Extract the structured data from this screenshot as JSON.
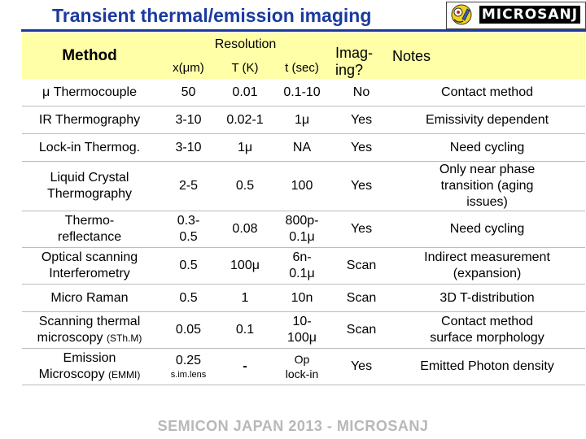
{
  "title": "Transient thermal/emission imaging",
  "logo": {
    "text": "MICROSANJ"
  },
  "header": {
    "method": "Method",
    "resolution": "Resolution",
    "x": "x(μm)",
    "t_k": "T (K)",
    "t_sec": "t (sec)",
    "imaging": "Imag-\ning?",
    "notes": "Notes"
  },
  "rows": [
    {
      "method": "μ Thermocouple",
      "method_small": "",
      "x": "50",
      "x_small": "",
      "t": "0.01",
      "time": "0.1-10",
      "imaging": "No",
      "notes": "Contact method"
    },
    {
      "method": "IR Thermography",
      "method_small": "",
      "x": "3-10",
      "x_small": "",
      "t": "0.02-1",
      "time": "1μ",
      "imaging": "Yes",
      "notes": "Emissivity dependent"
    },
    {
      "method": "Lock-in Thermog.",
      "method_small": "",
      "x": "3-10",
      "x_small": "",
      "t": "1μ",
      "time": "NA",
      "imaging": "Yes",
      "notes": "Need cycling"
    },
    {
      "method": "Liquid Crystal\nThermography",
      "method_small": "",
      "x": "2-5",
      "x_small": "",
      "t": "0.5",
      "time": "100",
      "imaging": "Yes",
      "notes": "Only near phase\ntransition (aging\nissues)"
    },
    {
      "method": "Thermo-\nreflectance",
      "method_small": "",
      "x": "0.3-\n0.5",
      "x_small": "",
      "t": "0.08",
      "time": "800p-\n0.1μ",
      "imaging": "Yes",
      "notes": "Need cycling"
    },
    {
      "method": "Optical scanning\nInterferometry",
      "method_small": "",
      "x": "0.5",
      "x_small": "",
      "t": "100μ",
      "time": "6n-\n0.1μ",
      "imaging": "Scan",
      "notes": "Indirect measurement\n(expansion)"
    },
    {
      "method": "Micro Raman",
      "method_small": "",
      "x": "0.5",
      "x_small": "",
      "t": "1",
      "time": "10n",
      "imaging": "Scan",
      "notes": "3D T-distribution"
    },
    {
      "method": "Scanning thermal\nmicroscopy ",
      "method_small": "(STh.M)",
      "x": "0.05",
      "x_small": "",
      "t": "0.1",
      "time": "10-\n100μ",
      "imaging": "Scan",
      "notes": "Contact method\nsurface morphology"
    },
    {
      "method": "Emission\nMicroscopy ",
      "method_small": "(EMMI)",
      "x": "0.25",
      "x_small": "s.im.lens",
      "t": "-",
      "time": "Op\nlock-in",
      "imaging": "Yes",
      "notes": "Emitted Photon density"
    }
  ],
  "footer": "SEMICON JAPAN 2013 - MICROSANJ",
  "colors": {
    "title": "#1a3aa0",
    "header_bg": "#ffffa8",
    "highlight_red": "#c00000",
    "footer": "#b8b8b8"
  }
}
